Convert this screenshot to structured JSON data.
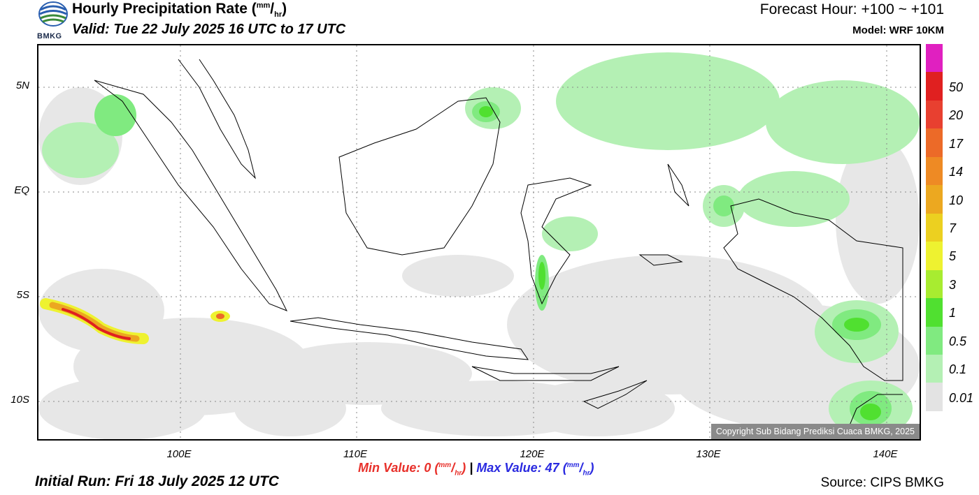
{
  "header": {
    "title": "Hourly Precipitation Rate",
    "title_unit_open": "(",
    "title_unit_num": "mm",
    "title_unit_sep": "/",
    "title_unit_den": "hr",
    "title_unit_close": ")",
    "valid": "Valid: Tue 22 July 2025 16 UTC to 17 UTC",
    "forecast_hour": "Forecast Hour: +100 ~ +101",
    "model": "Model: WRF 10KM",
    "logo_text": "BMKG"
  },
  "map": {
    "lat_labels": [
      "5N",
      "EQ",
      "5S",
      "10S"
    ],
    "lon_labels": [
      "100E",
      "110E",
      "120E",
      "130E",
      "140E"
    ],
    "copyright": "Copyright Sub Bidang Prediksi Cuaca BMKG, 2025",
    "colors": {
      "land_outline": "#000000",
      "grid": "#888888",
      "light_rain": "#e3e3e3"
    }
  },
  "legend": {
    "levels": [
      {
        "label": "",
        "color": "#e020c0"
      },
      {
        "label": "50",
        "color": "#e02020"
      },
      {
        "label": "20",
        "color": "#e84030"
      },
      {
        "label": "17",
        "color": "#ec6a28"
      },
      {
        "label": "14",
        "color": "#ee8a24"
      },
      {
        "label": "10",
        "color": "#eca820"
      },
      {
        "label": "7",
        "color": "#ecd020"
      },
      {
        "label": "5",
        "color": "#eef230"
      },
      {
        "label": "3",
        "color": "#a8ec30"
      },
      {
        "label": "1",
        "color": "#50e030"
      },
      {
        "label": "0.5",
        "color": "#80ea80"
      },
      {
        "label": "0.1",
        "color": "#b4f0b4"
      },
      {
        "label": "0.01",
        "color": "#e3e3e3"
      }
    ]
  },
  "footer": {
    "min_label": "Min Value:",
    "min_value": "0",
    "max_label": "Max Value:",
    "max_value": "47",
    "separator": "|",
    "unit_num": "mm",
    "unit_den": "hr",
    "initial_run": "Initial Run: Fri 18 July 2025 12 UTC",
    "source": "Source: CIPS BMKG"
  }
}
